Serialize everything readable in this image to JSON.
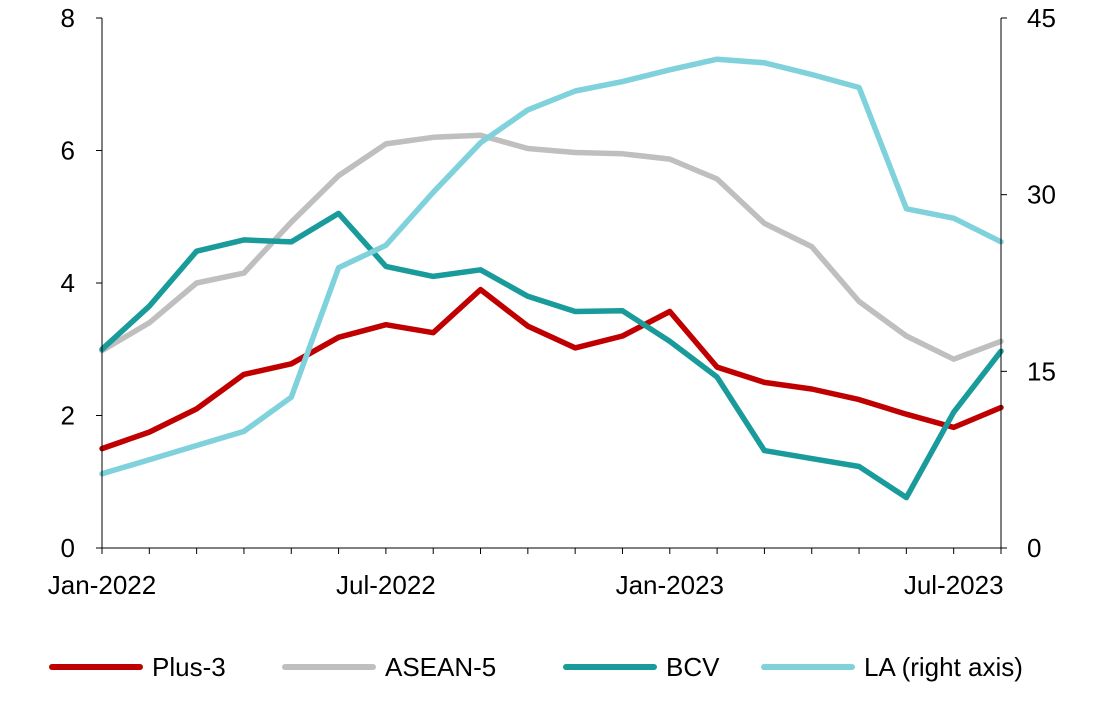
{
  "chart_data": {
    "type": "line",
    "title": "",
    "xlabel": "",
    "ylabel": "",
    "x": [
      "Jan-2022",
      "Feb-2022",
      "Mar-2022",
      "Apr-2022",
      "May-2022",
      "Jun-2022",
      "Jul-2022",
      "Aug-2022",
      "Sep-2022",
      "Oct-2022",
      "Nov-2022",
      "Dec-2022",
      "Jan-2023",
      "Feb-2023",
      "Mar-2023",
      "Apr-2023",
      "May-2023",
      "Jun-2023",
      "Jul-2023",
      "Aug-2023"
    ],
    "x_tick_labels": [
      "Jan-2022",
      "Jul-2022",
      "Jan-2023",
      "Jul-2023"
    ],
    "y_left": {
      "ylim": [
        0,
        8
      ],
      "ticks": [
        "0",
        "2",
        "4",
        "6",
        "8"
      ]
    },
    "y_right": {
      "ylim": [
        0,
        45
      ],
      "ticks": [
        "0",
        "15",
        "30",
        "45"
      ]
    },
    "grid": false,
    "legend_position": "bottom",
    "series": [
      {
        "name": "Plus-3",
        "axis": "left",
        "color": "#C00000",
        "values": [
          1.5,
          1.75,
          2.1,
          2.62,
          2.78,
          3.18,
          3.37,
          3.25,
          3.9,
          3.35,
          3.02,
          3.2,
          3.57,
          2.73,
          2.5,
          2.4,
          2.24,
          2.02,
          1.82,
          2.12
        ]
      },
      {
        "name": "ASEAN-5",
        "axis": "left",
        "color": "#BFBFBF",
        "values": [
          2.98,
          3.4,
          4.0,
          4.15,
          4.92,
          5.62,
          6.1,
          6.2,
          6.23,
          6.03,
          5.97,
          5.95,
          5.87,
          5.57,
          4.9,
          4.55,
          3.72,
          3.2,
          2.85,
          3.12
        ]
      },
      {
        "name": "BCV",
        "axis": "left",
        "color": "#1A9B9B",
        "values": [
          3.0,
          3.65,
          4.48,
          4.65,
          4.62,
          5.05,
          4.25,
          4.1,
          4.2,
          3.8,
          3.57,
          3.58,
          3.12,
          2.58,
          1.47,
          1.35,
          1.23,
          0.76,
          2.05,
          2.97
        ]
      },
      {
        "name": "LA (right axis)",
        "axis": "right",
        "color": "#7FD1DC",
        "values": [
          6.3,
          7.5,
          8.7,
          9.9,
          12.8,
          23.8,
          25.7,
          30.2,
          34.4,
          37.2,
          38.8,
          39.6,
          40.6,
          41.5,
          41.2,
          40.2,
          39.1,
          28.8,
          28.0,
          26.0
        ]
      }
    ]
  }
}
